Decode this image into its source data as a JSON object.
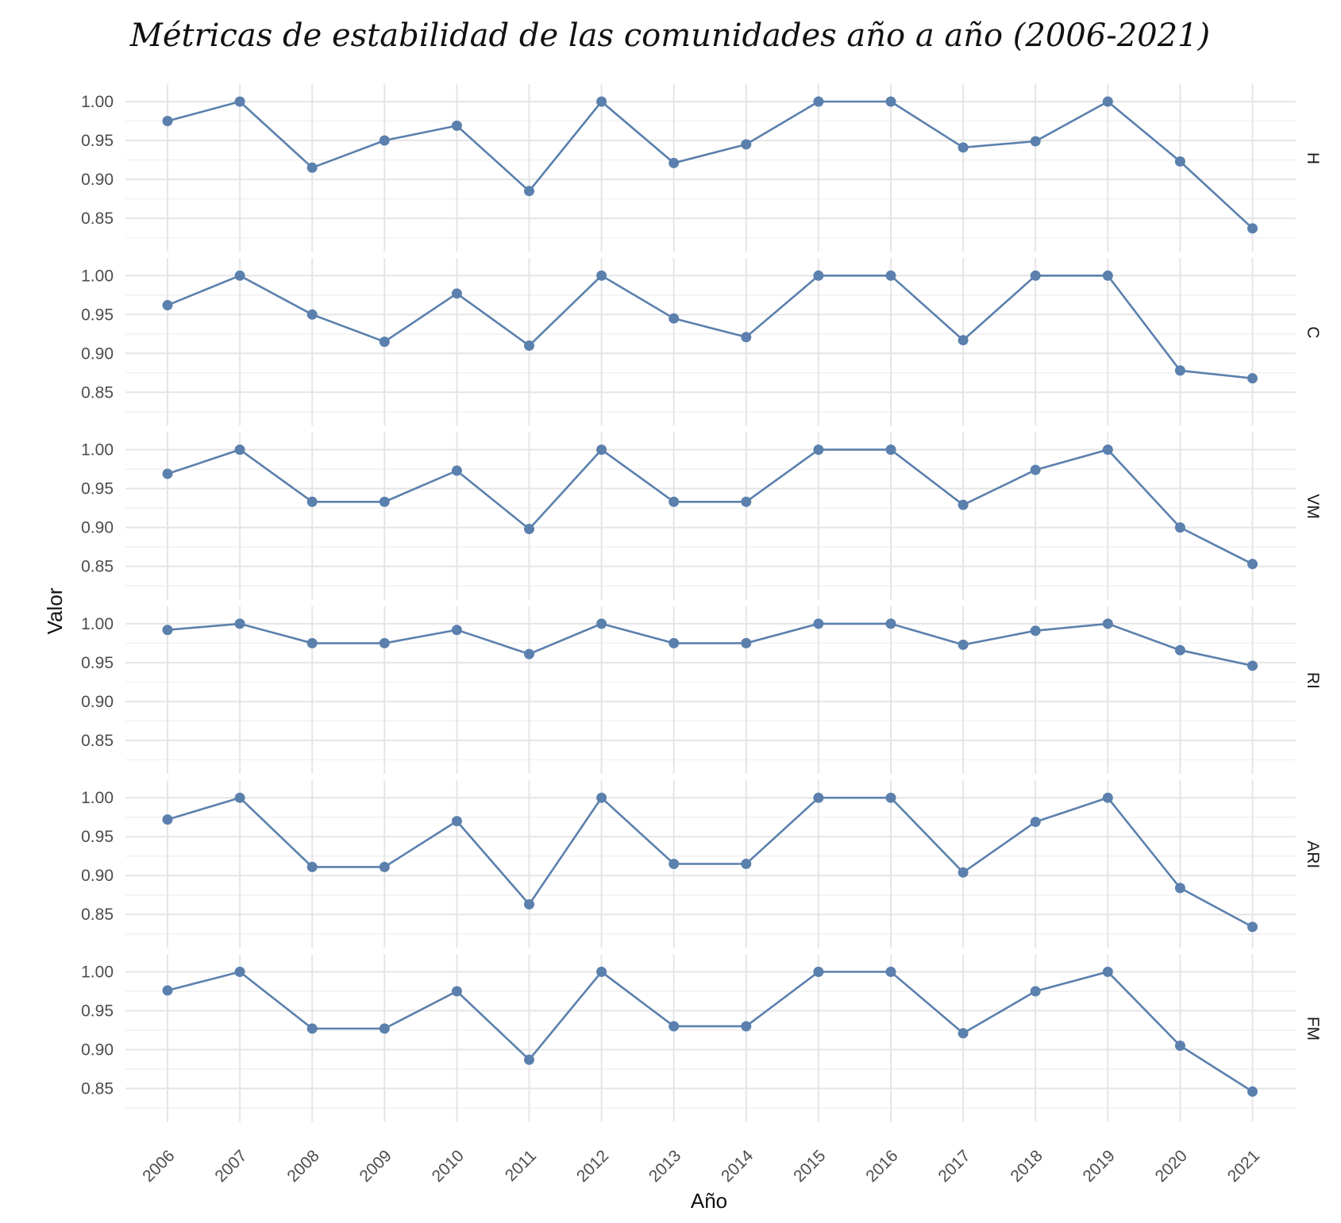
{
  "chart_data": {
    "type": "line",
    "title": "Métricas de estabilidad de las comunidades año a año (2006-2021)",
    "xlabel": "Año",
    "ylabel": "Valor",
    "x": [
      "2006",
      "2007",
      "2008",
      "2009",
      "2010",
      "2011",
      "2012",
      "2013",
      "2014",
      "2015",
      "2016",
      "2017",
      "2018",
      "2019",
      "2020",
      "2021"
    ],
    "y_ticks": [
      "0.85",
      "0.90",
      "0.95",
      "1.00"
    ],
    "ylim": [
      0.825,
      1.0
    ],
    "grid": true,
    "line_color": "#5b80ad",
    "facets": [
      {
        "name": "H",
        "values": [
          0.975,
          1.0,
          0.915,
          0.95,
          0.969,
          0.885,
          1.0,
          0.921,
          0.945,
          1.0,
          1.0,
          0.941,
          0.949,
          1.0,
          0.923,
          0.837
        ]
      },
      {
        "name": "C",
        "values": [
          0.962,
          1.0,
          0.95,
          0.915,
          0.977,
          0.91,
          1.0,
          0.945,
          0.921,
          1.0,
          1.0,
          0.917,
          1.0,
          1.0,
          0.878,
          0.868
        ]
      },
      {
        "name": "VM",
        "values": [
          0.969,
          1.0,
          0.933,
          0.933,
          0.973,
          0.898,
          1.0,
          0.933,
          0.933,
          1.0,
          1.0,
          0.929,
          0.974,
          1.0,
          0.9,
          0.853
        ]
      },
      {
        "name": "RI",
        "values": [
          0.992,
          1.0,
          0.975,
          0.975,
          0.992,
          0.961,
          1.0,
          0.975,
          0.975,
          1.0,
          1.0,
          0.973,
          0.991,
          1.0,
          0.966,
          0.946
        ]
      },
      {
        "name": "ARI",
        "values": [
          0.972,
          1.0,
          0.911,
          0.911,
          0.97,
          0.863,
          1.0,
          0.915,
          0.915,
          1.0,
          1.0,
          0.904,
          0.969,
          1.0,
          0.884,
          0.834
        ]
      },
      {
        "name": "FM",
        "values": [
          0.976,
          1.0,
          0.927,
          0.927,
          0.975,
          0.887,
          1.0,
          0.93,
          0.93,
          1.0,
          1.0,
          0.921,
          0.975,
          1.0,
          0.905,
          0.846
        ]
      }
    ]
  }
}
